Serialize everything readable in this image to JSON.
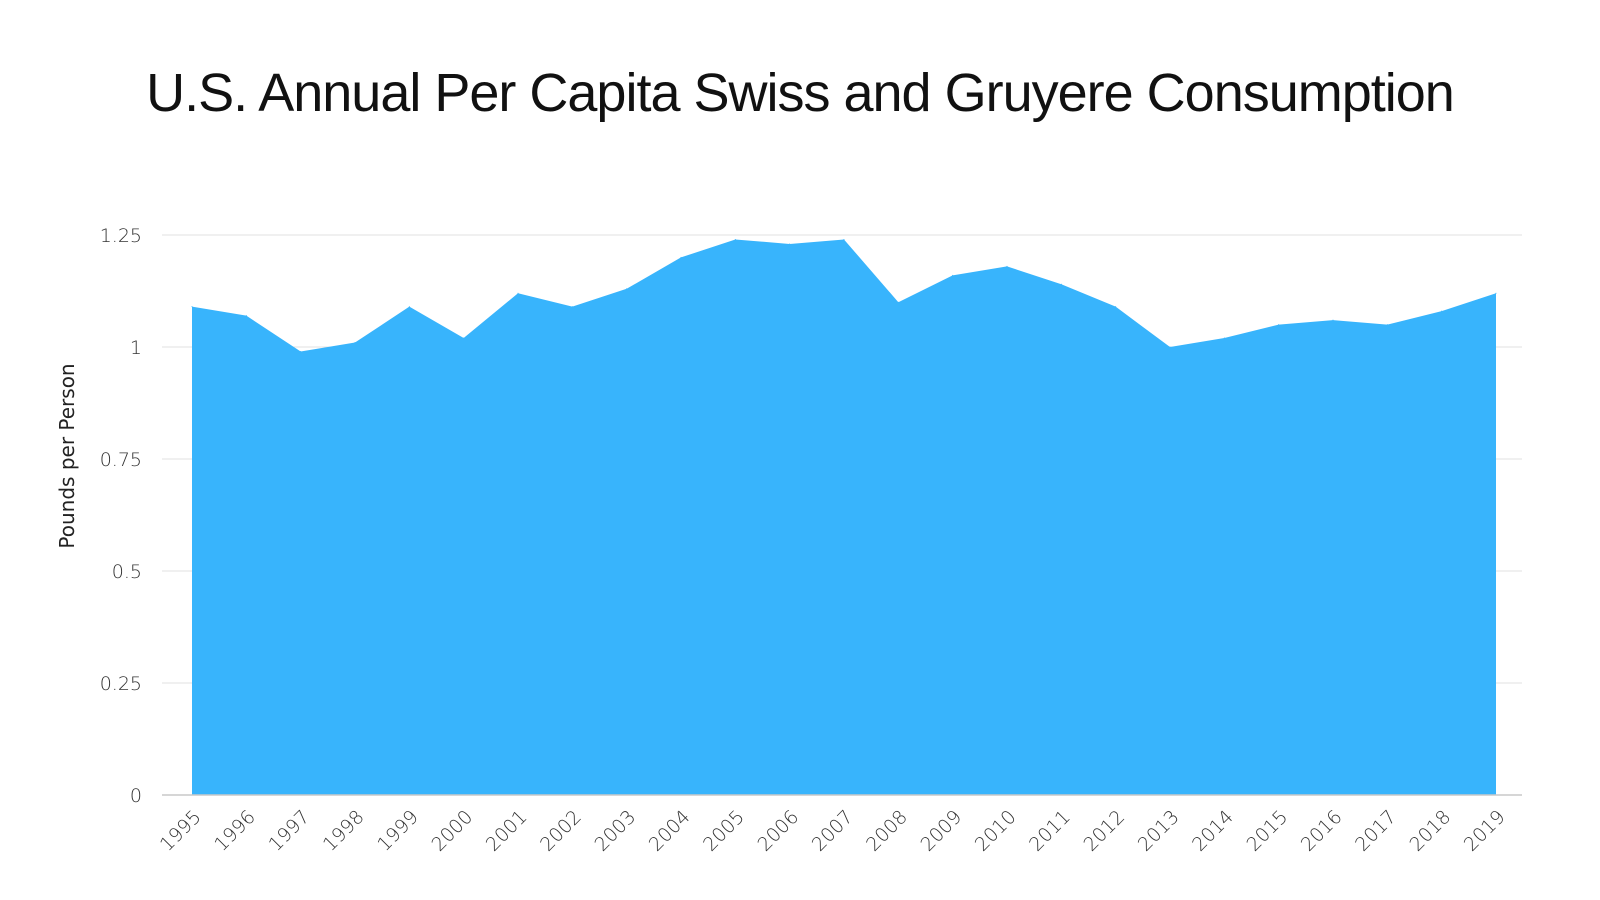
{
  "chart_data": {
    "type": "area",
    "title": "U.S. Annual Per Capita Swiss and Gruyere Consumption",
    "xlabel": "",
    "ylabel": "Pounds per Person",
    "categories": [
      "1995",
      "1996",
      "1997",
      "1998",
      "1999",
      "2000",
      "2001",
      "2002",
      "2003",
      "2004",
      "2005",
      "2006",
      "2007",
      "2008",
      "2009",
      "2010",
      "2011",
      "2012",
      "2013",
      "2014",
      "2015",
      "2016",
      "2017",
      "2018",
      "2019"
    ],
    "values": [
      1.09,
      1.07,
      0.99,
      1.01,
      1.09,
      1.02,
      1.12,
      1.09,
      1.13,
      1.2,
      1.24,
      1.23,
      1.24,
      1.1,
      1.16,
      1.18,
      1.14,
      1.09,
      1.0,
      1.02,
      1.05,
      1.06,
      1.05,
      1.08,
      1.12
    ],
    "ylim": [
      0,
      1.25
    ],
    "yticks": [
      0,
      0.25,
      0.5,
      0.75,
      1,
      1.25
    ],
    "ytick_labels": [
      "0",
      "0.25",
      "0.5",
      "0.75",
      "1",
      "1.25"
    ],
    "fill_color": "#38b4fc",
    "grid": true,
    "legend": "none"
  }
}
